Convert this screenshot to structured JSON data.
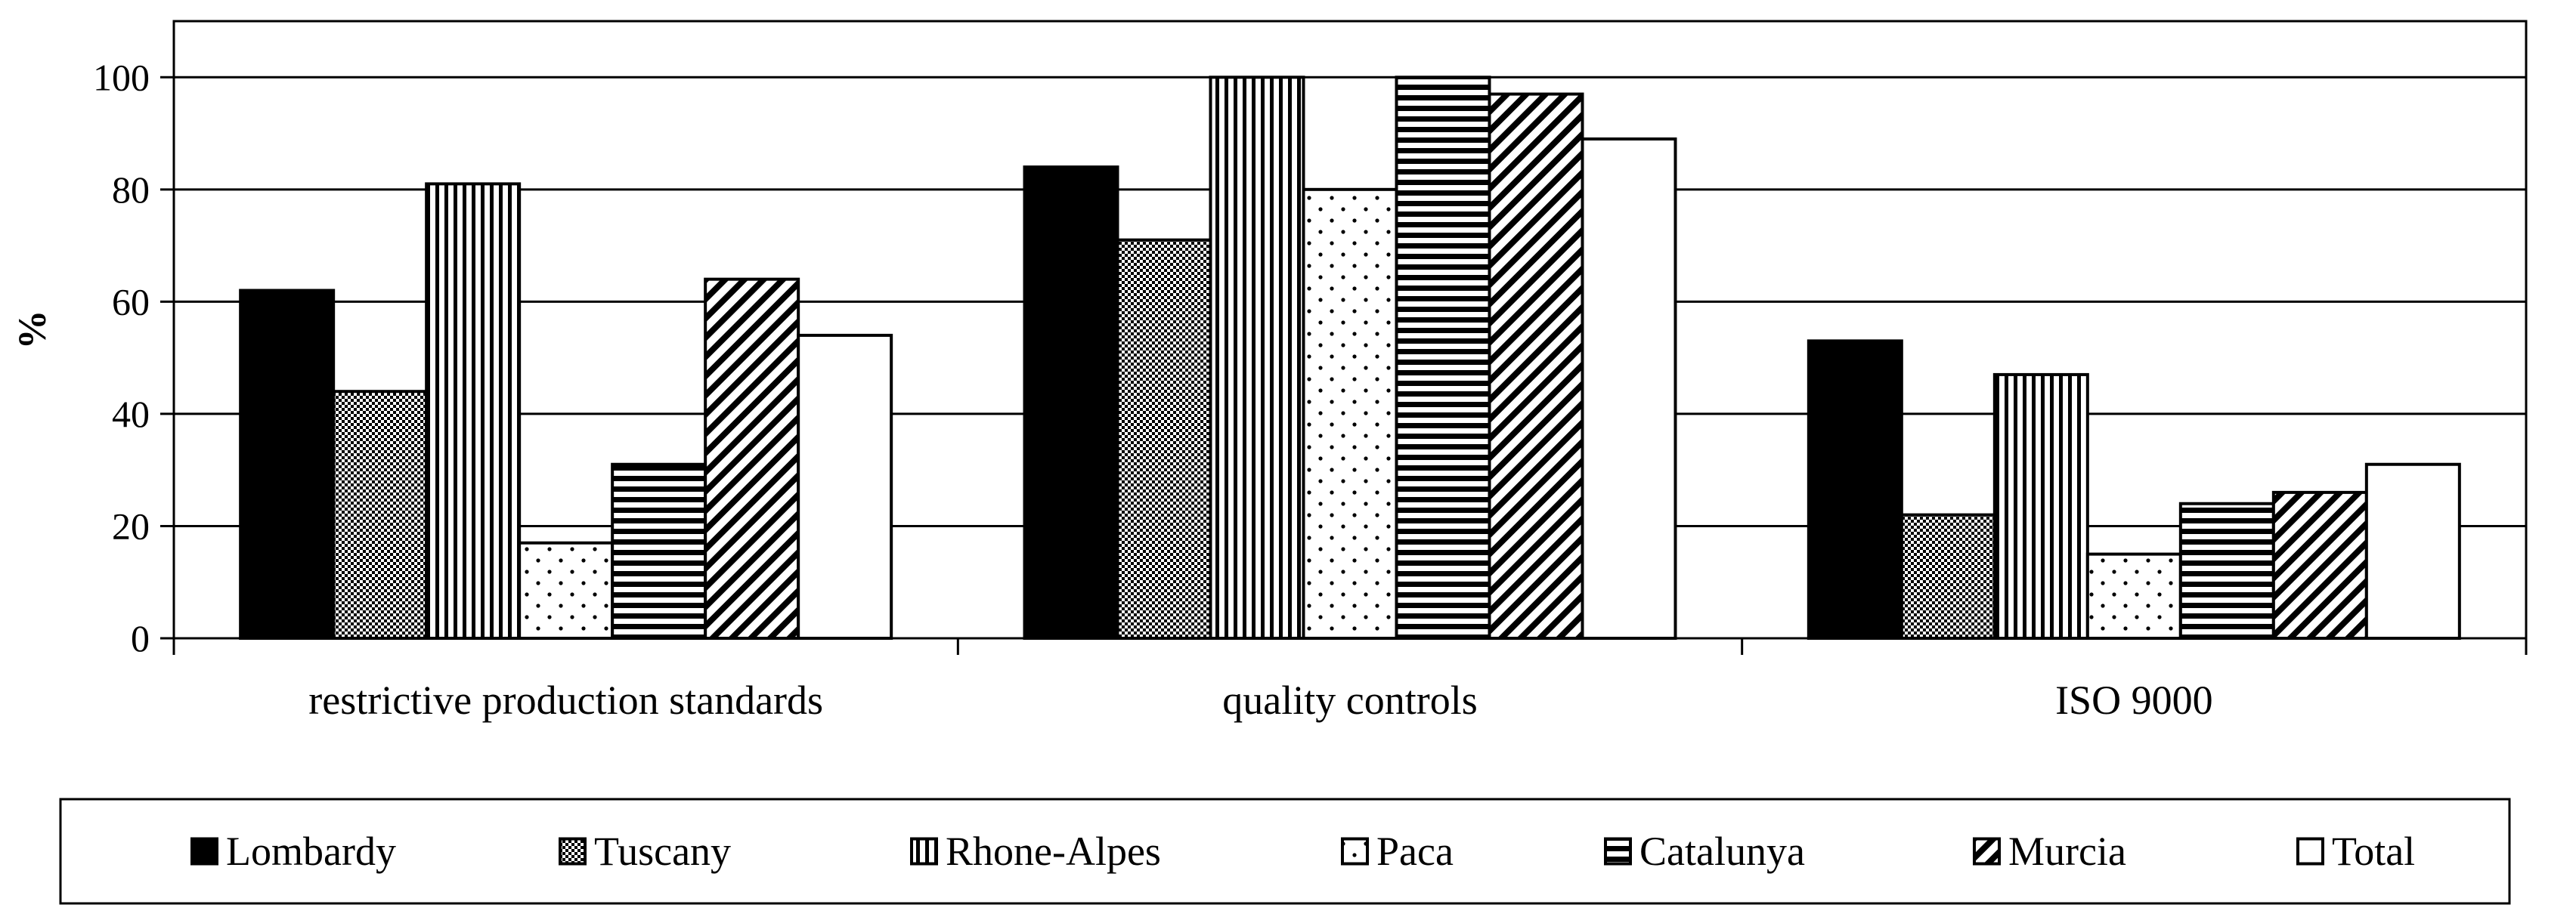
{
  "chart_data": {
    "type": "bar",
    "title": "",
    "xlabel": "",
    "ylabel": "%",
    "ylim": [
      0,
      100
    ],
    "yticks": [
      0,
      20,
      40,
      60,
      80,
      100
    ],
    "grid": true,
    "legend_placement": "bottom",
    "categories": [
      "restrictive production standards",
      "quality controls",
      "ISO 9000"
    ],
    "series": [
      {
        "name": "Lombardy",
        "values": [
          62,
          84,
          53
        ],
        "pattern": "solid"
      },
      {
        "name": "Tuscany",
        "values": [
          44,
          71,
          22
        ],
        "pattern": "checker"
      },
      {
        "name": "Rhone-Alpes",
        "values": [
          81,
          100,
          47
        ],
        "pattern": "vertical"
      },
      {
        "name": "Paca",
        "values": [
          17,
          80,
          15
        ],
        "pattern": "dots"
      },
      {
        "name": "Catalunya",
        "values": [
          31,
          100,
          24
        ],
        "pattern": "horizontal"
      },
      {
        "name": "Murcia",
        "values": [
          64,
          97,
          26
        ],
        "pattern": "diagonal"
      },
      {
        "name": "Total",
        "values": [
          54,
          89,
          31
        ],
        "pattern": "white"
      }
    ]
  }
}
